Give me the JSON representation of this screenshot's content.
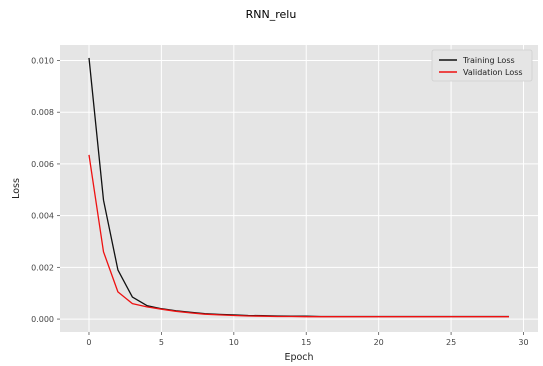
{
  "chart_data": {
    "type": "line",
    "title": "RNN_relu",
    "xlabel": "Epoch",
    "ylabel": "Loss",
    "xlim": [
      -2,
      31
    ],
    "ylim": [
      -0.0005,
      0.0106
    ],
    "xticks": [
      0,
      5,
      10,
      15,
      20,
      25,
      30
    ],
    "yticks": [
      0.0,
      0.002,
      0.004,
      0.006,
      0.008,
      0.01
    ],
    "ytick_labels": [
      "0.000",
      "0.002",
      "0.004",
      "0.006",
      "0.008",
      "0.010"
    ],
    "grid": true,
    "background": "#e5e5e5",
    "legend_position": "top-right",
    "x": [
      0,
      1,
      2,
      3,
      4,
      5,
      6,
      7,
      8,
      9,
      10,
      11,
      12,
      13,
      14,
      15,
      16,
      17,
      18,
      19,
      20,
      21,
      22,
      23,
      24,
      25,
      26,
      27,
      28,
      29
    ],
    "series": [
      {
        "name": "Training Loss",
        "color": "#111111",
        "values": [
          0.0101,
          0.0046,
          0.0019,
          0.00085,
          0.00052,
          0.0004,
          0.00032,
          0.00026,
          0.00021,
          0.00018,
          0.00016,
          0.00014,
          0.00013,
          0.00012,
          0.00011,
          0.00011,
          0.0001,
          0.0001,
          0.0001,
          0.0001,
          0.0001,
          0.0001,
          0.0001,
          0.0001,
          0.0001,
          0.0001,
          0.0001,
          0.0001,
          0.0001,
          0.0001
        ]
      },
      {
        "name": "Validation Loss",
        "color": "#ee1111",
        "values": [
          0.00635,
          0.0026,
          0.00105,
          0.0006,
          0.00047,
          0.00038,
          0.0003,
          0.00024,
          0.00019,
          0.00016,
          0.00014,
          0.00012,
          0.00011,
          0.0001,
          0.0001,
          9e-05,
          9e-05,
          9e-05,
          9e-05,
          9e-05,
          9e-05,
          9e-05,
          9e-05,
          9e-05,
          9e-05,
          9e-05,
          9e-05,
          9e-05,
          9e-05,
          9e-05
        ]
      }
    ]
  }
}
